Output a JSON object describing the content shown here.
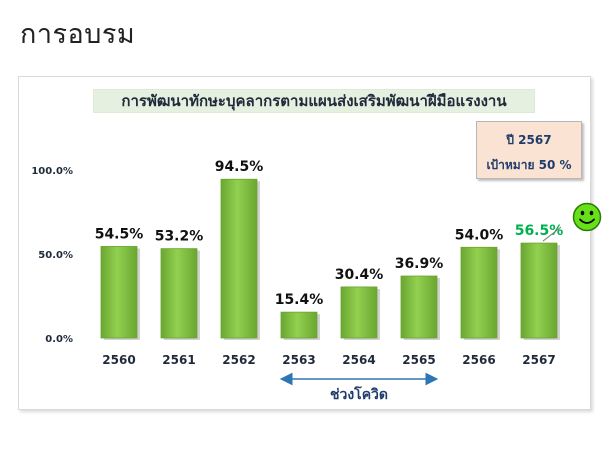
{
  "page_title": "การอบรม",
  "colors": {
    "bar": "#92d050",
    "bar_dark": "#6aa631",
    "highlight_label": "#00b050",
    "axis_text": "#1f2a3a",
    "target_box_bg": "#fbe3d4",
    "covid_arrow": "#2e75b6"
  },
  "chart_data": {
    "type": "bar",
    "title": "การพัฒนาทักษะบุคลากรตามแผนส่งเสริมพัฒนาฝีมือแรงงาน",
    "categories": [
      "2560",
      "2561",
      "2562",
      "2563",
      "2564",
      "2565",
      "2566",
      "2567"
    ],
    "values": [
      54.5,
      53.2,
      94.5,
      15.4,
      30.4,
      36.9,
      54.0,
      56.5
    ],
    "data_labels": [
      "54.5%",
      "53.2%",
      "94.5%",
      "15.4%",
      "30.4%",
      "36.9%",
      "54.0%",
      "56.5%"
    ],
    "highlight_index": 7,
    "ylim": [
      0,
      100
    ],
    "yticks": [
      "0.0%",
      "50.0%",
      "100.0%"
    ],
    "xlabel": "",
    "ylabel": "",
    "grid": false,
    "legend": "none"
  },
  "target_box": {
    "line1": "ปี 2567",
    "line2": "เป้าหมาย  50 %"
  },
  "covid_annotation": {
    "label": "ช่วงโควิด",
    "start_index": 3,
    "end_index": 5
  },
  "smiley": "smiley-face-icon"
}
